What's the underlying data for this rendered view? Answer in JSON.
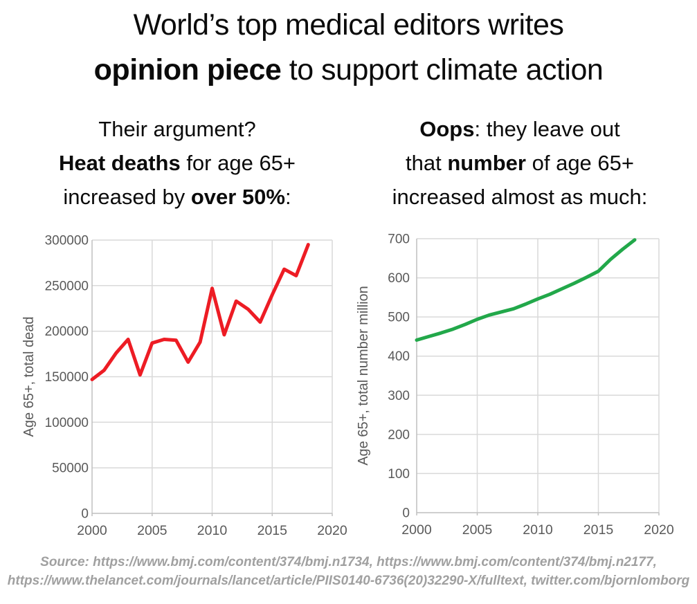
{
  "title": {
    "line1": [
      {
        "t": "World’s top medical editors writes",
        "b": false
      }
    ],
    "line2": [
      {
        "t": "opinion piece",
        "b": true
      },
      {
        "t": " to support climate action",
        "b": false
      }
    ]
  },
  "subtitle_left": {
    "lines": [
      [
        {
          "t": "Their argument?",
          "b": false
        }
      ],
      [
        {
          "t": "Heat deaths",
          "b": true
        },
        {
          "t": " for age 65+",
          "b": false
        }
      ],
      [
        {
          "t": "increased by ",
          "b": false
        },
        {
          "t": "over 50%",
          "b": true
        },
        {
          "t": ":",
          "b": false
        }
      ]
    ]
  },
  "subtitle_right": {
    "lines": [
      [
        {
          "t": "Oops",
          "b": true
        },
        {
          "t": ": they leave out",
          "b": false
        }
      ],
      [
        {
          "t": "that ",
          "b": false
        },
        {
          "t": "number",
          "b": true
        },
        {
          "t": " of age 65+",
          "b": false
        }
      ],
      [
        {
          "t": "increased almost as much:",
          "b": false
        }
      ]
    ]
  },
  "chart_data": [
    {
      "type": "line",
      "name": "heat-deaths",
      "ylabel": "Age 65+, total dead",
      "line_color": "#ed1c24",
      "x": [
        2000,
        2001,
        2002,
        2003,
        2004,
        2005,
        2006,
        2007,
        2008,
        2009,
        2010,
        2011,
        2012,
        2013,
        2014,
        2015,
        2016,
        2017,
        2018
      ],
      "values": [
        147000,
        157000,
        176000,
        191000,
        152000,
        187000,
        191000,
        190000,
        166000,
        188000,
        247000,
        196000,
        233000,
        224000,
        210000,
        240000,
        268000,
        261000,
        295000
      ],
      "xlim": [
        2000,
        2020
      ],
      "ylim": [
        0,
        300000
      ],
      "yticks": [
        0,
        50000,
        100000,
        150000,
        200000,
        250000,
        300000
      ],
      "xticks": [
        2000,
        2005,
        2010,
        2015,
        2020
      ],
      "grid": true,
      "legend": "none"
    },
    {
      "type": "line",
      "name": "population-65plus",
      "ylabel": "Age 65+, total number million",
      "line_color": "#22a84a",
      "x": [
        2000,
        2001,
        2002,
        2003,
        2004,
        2005,
        2006,
        2007,
        2008,
        2009,
        2010,
        2011,
        2012,
        2013,
        2014,
        2015,
        2016,
        2017,
        2018
      ],
      "values": [
        441,
        450,
        459,
        469,
        481,
        494,
        505,
        513,
        521,
        533,
        546,
        558,
        572,
        586,
        601,
        617,
        647,
        673,
        697
      ],
      "xlim": [
        2000,
        2020
      ],
      "ylim": [
        0,
        700
      ],
      "yticks": [
        0,
        100,
        200,
        300,
        400,
        500,
        600,
        700
      ],
      "xticks": [
        2000,
        2005,
        2010,
        2015,
        2020
      ],
      "grid": true,
      "legend": "none"
    }
  ],
  "source": {
    "line1": "Source: https://www.bmj.com/content/374/bmj.n1734, https://www.bmj.com/content/374/bmj.n2177,",
    "line2": "https://www.thelancet.com/journals/lancet/article/PIIS0140-6736(20)32290-X/fulltext, twitter.com/bjornlomborg"
  },
  "colors": {
    "red_line": "#ed1c24",
    "green_line": "#22a84a",
    "axis_text": "#595959",
    "gridline": "#d9d9d9",
    "axis_line": "#bfbfbf",
    "source_text": "#a0a0a0",
    "text": "#0b0b0b"
  }
}
